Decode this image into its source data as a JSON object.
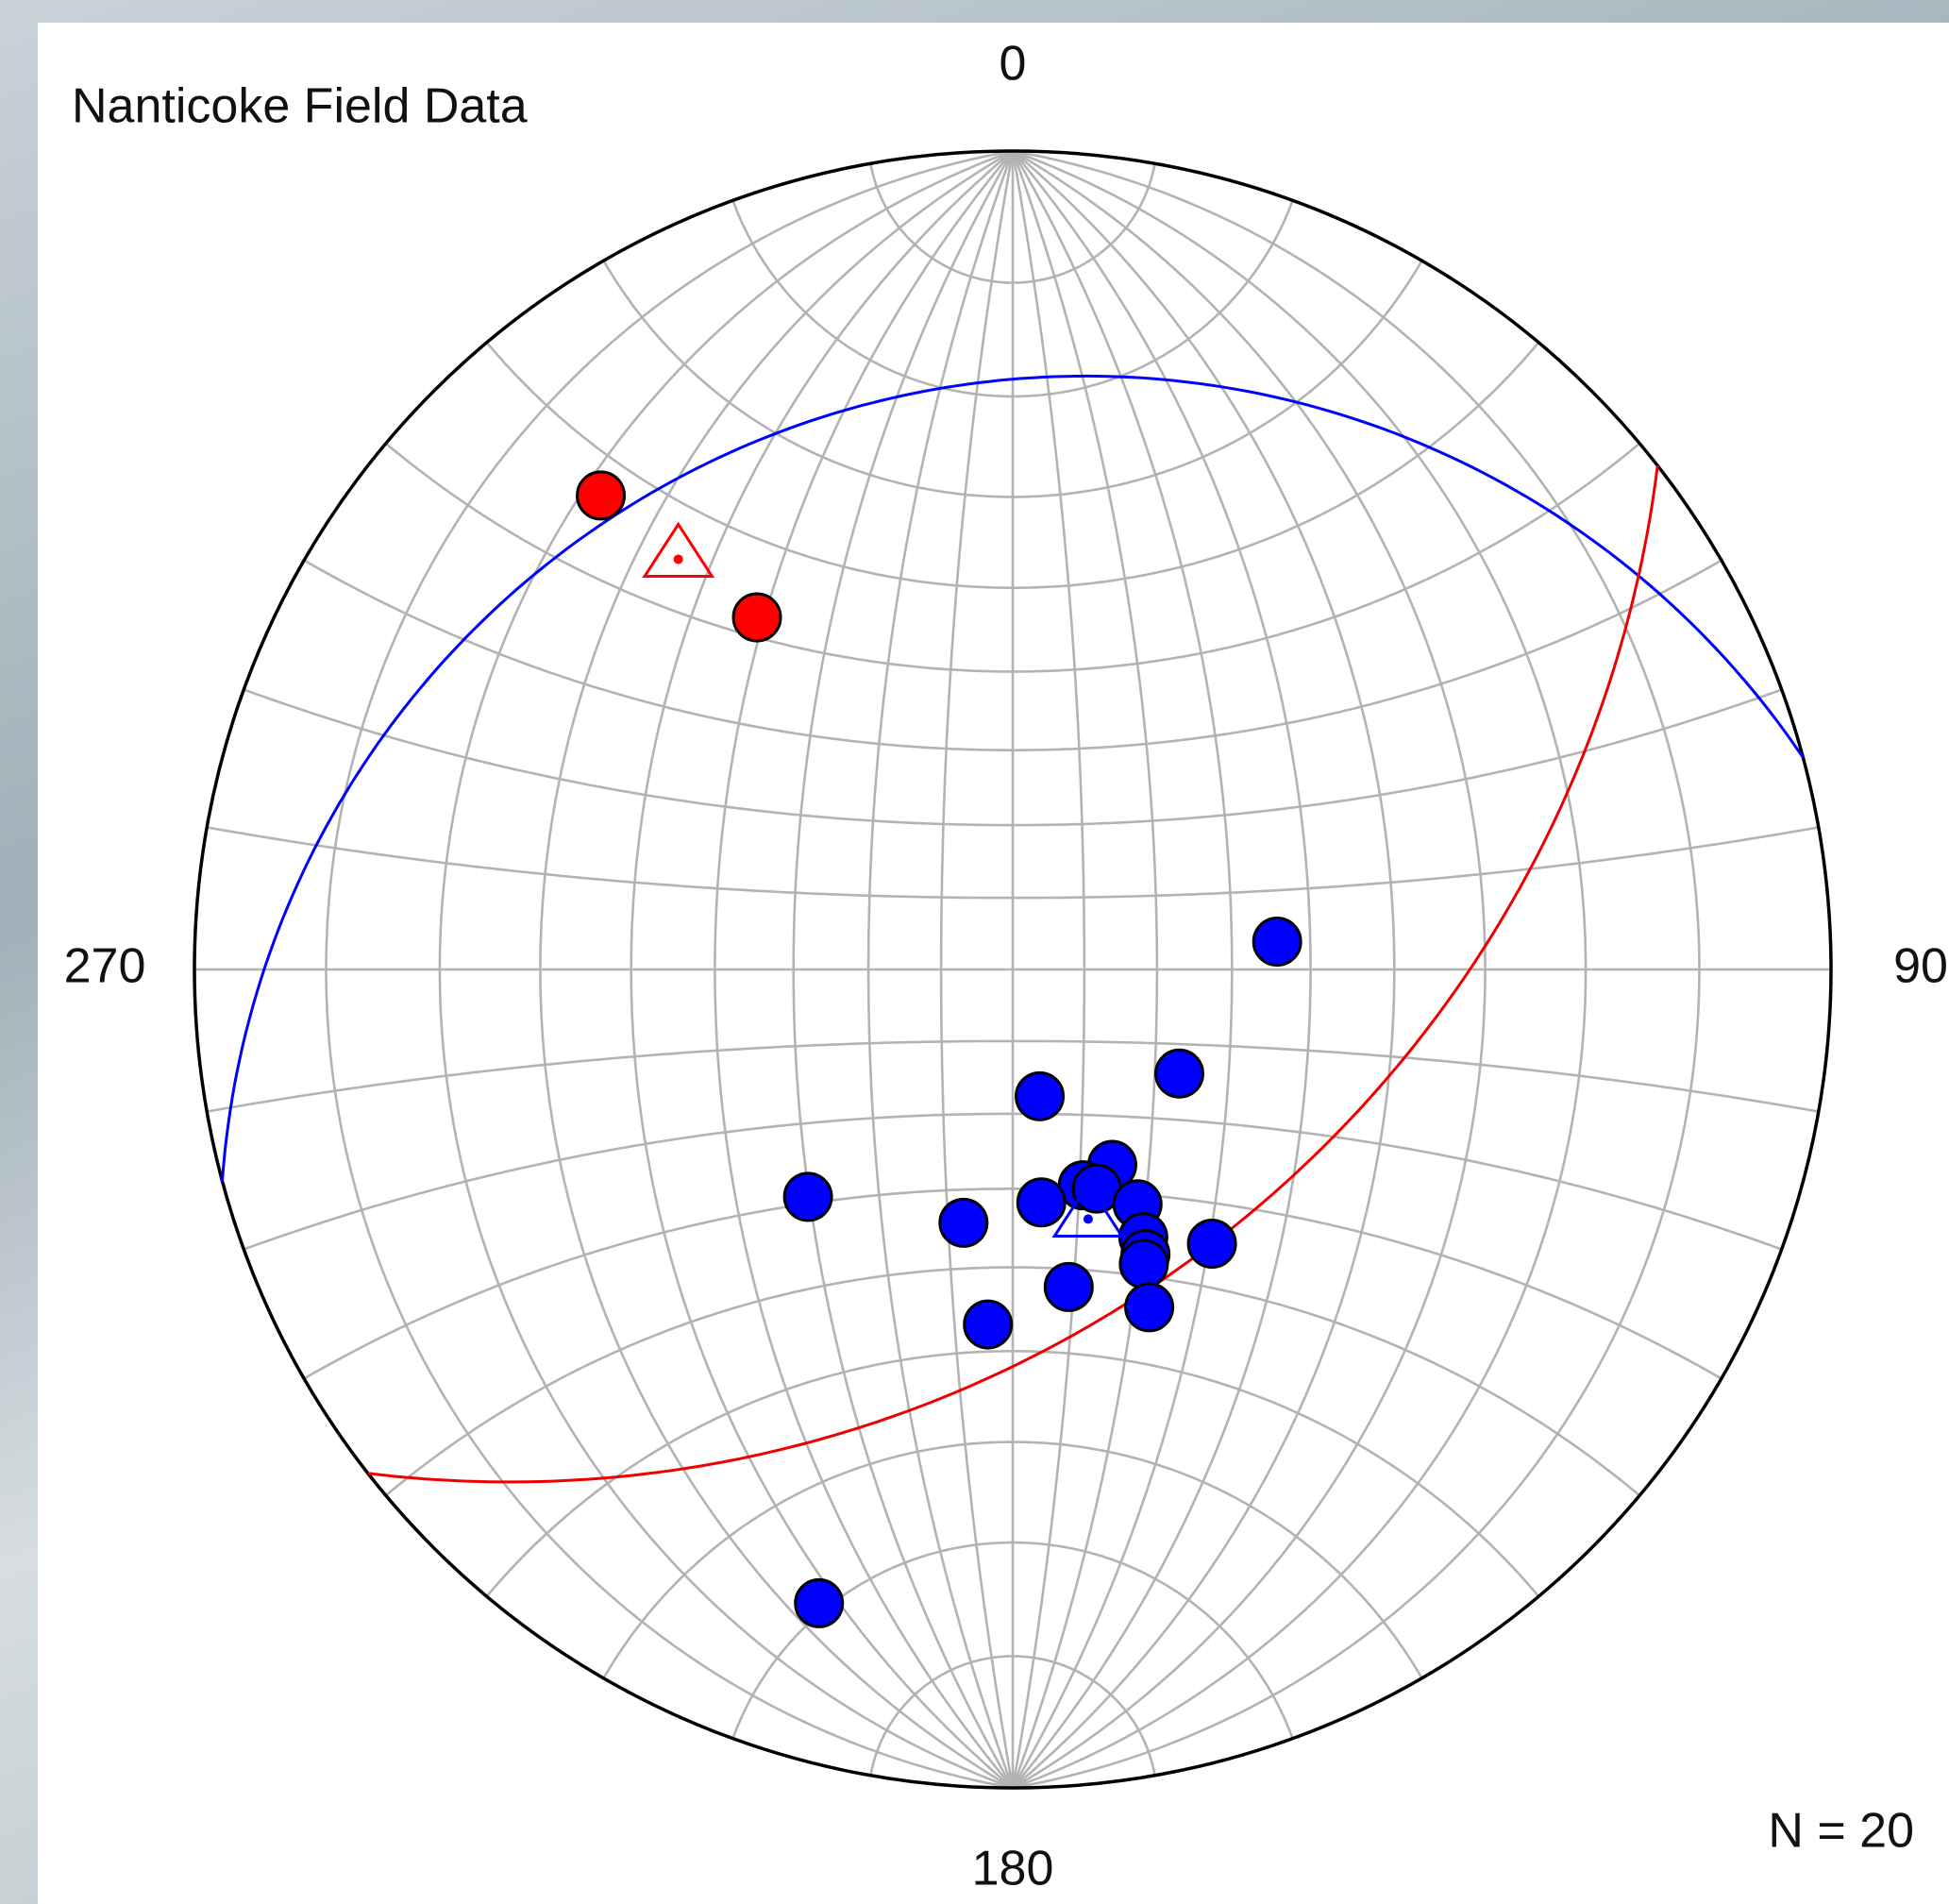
{
  "chart_data": {
    "type": "stereonet",
    "projection": "equal-angle",
    "title": "Nanticoke Field Data",
    "annotation": "N = 20",
    "azimuth_ticks": [
      0,
      90,
      180,
      270
    ],
    "grid": true,
    "grid_interval": 10,
    "grid_color": "#b3b3b3",
    "series": [
      {
        "color": "#ff0000",
        "trend": [
          319,
          324
        ],
        "plunge": [
          15,
          34
        ]
      },
      {
        "color": "#0000ff",
        "trend": [
          84,
          122,
          168,
          153,
          162,
          159,
          222,
          173,
          152,
          191,
          154,
          155,
          156,
          144,
          170,
          158,
          184,
          197
        ],
        "plunge": [
          54,
          63,
          72,
          60,
          59,
          58,
          49,
          58,
          54,
          55,
          50,
          48,
          47,
          45,
          47,
          42,
          43,
          12
        ]
      }
    ],
    "means": [
      {
        "color": "#ff0000",
        "trend": 321,
        "plunge": 24
      },
      {
        "color": "#0000ff",
        "trend": 163,
        "plunge": 55
      }
    ],
    "planes": [
      {
        "color": "#0000ff",
        "dip_direction": 345,
        "dip": 19
      },
      {
        "color": "#ee0000",
        "dip_direction": 142,
        "dip": 45
      }
    ]
  }
}
